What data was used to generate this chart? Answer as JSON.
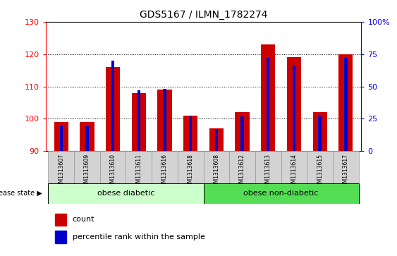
{
  "title": "GDS5167 / ILMN_1782274",
  "samples": [
    "GSM1313607",
    "GSM1313609",
    "GSM1313610",
    "GSM1313611",
    "GSM1313616",
    "GSM1313618",
    "GSM1313608",
    "GSM1313612",
    "GSM1313613",
    "GSM1313614",
    "GSM1313615",
    "GSM1313617"
  ],
  "count_values": [
    99,
    99,
    116,
    108,
    109,
    101,
    97,
    102,
    123,
    119,
    102,
    120
  ],
  "percentile_values": [
    20,
    19,
    70,
    47,
    48,
    27,
    17,
    27,
    72,
    66,
    27,
    72
  ],
  "ylim_left": [
    90,
    130
  ],
  "ylim_right": [
    0,
    100
  ],
  "yticks_left": [
    90,
    100,
    110,
    120,
    130
  ],
  "yticks_right": [
    0,
    25,
    50,
    75,
    100
  ],
  "yticklabels_right": [
    "0",
    "25",
    "50",
    "75",
    "100%"
  ],
  "bar_color": "#cc0000",
  "blue_color": "#0000cc",
  "group1_label": "obese diabetic",
  "group2_label": "obese non-diabetic",
  "group1_color": "#ccffcc",
  "group2_color": "#55dd55",
  "group1_count": 6,
  "group2_count": 6,
  "disease_state_label": "disease state",
  "legend_count": "count",
  "legend_percentile": "percentile rank within the sample",
  "tick_bg_color": "#d3d3d3",
  "bar_width": 0.55,
  "blue_bar_width": 0.12
}
